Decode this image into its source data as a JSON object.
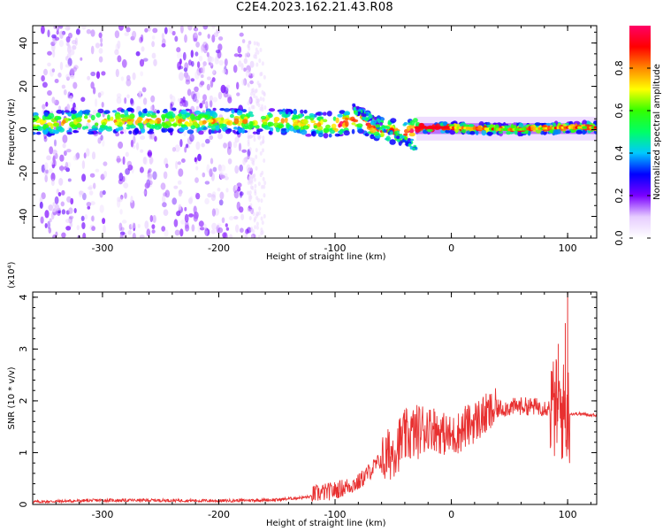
{
  "title": "C2E4.2023.162.21.43.R08",
  "chart_data": [
    {
      "type": "heatmap",
      "xlabel": "Height of straight line (km)",
      "ylabel": "Frequency (Hz)",
      "xlim": [
        -360,
        125
      ],
      "ylim": [
        -50,
        48
      ],
      "xticks": [
        -300,
        -200,
        -100,
        0,
        100
      ],
      "yticks": [
        -40,
        -20,
        0,
        20,
        40
      ],
      "colorbar": {
        "label": "Normalized spectral amplitude",
        "range": [
          0.0,
          1.0
        ],
        "ticks": [
          0.0,
          0.2,
          0.4,
          0.6,
          0.8
        ],
        "colormap": "rainbow",
        "stops": [
          "#ffffff",
          "#e6ccff",
          "#7a00ff",
          "#0000ff",
          "#00c8ff",
          "#00ff66",
          "#33ff00",
          "#ffff00",
          "#ff8800",
          "#ff0000",
          "#ff0066"
        ]
      },
      "band_center_hz": [
        {
          "x": -360,
          "f": 3
        },
        {
          "x": -300,
          "f": 4
        },
        {
          "x": -250,
          "f": 4
        },
        {
          "x": -200,
          "f": 4
        },
        {
          "x": -150,
          "f": 4
        },
        {
          "x": -100,
          "f": 2
        },
        {
          "x": -80,
          "f": 5
        },
        {
          "x": -60,
          "f": 0
        },
        {
          "x": -40,
          "f": -2
        },
        {
          "x": -30,
          "f": 1
        },
        {
          "x": 0,
          "f": 1
        },
        {
          "x": 50,
          "f": 0
        },
        {
          "x": 100,
          "f": 1
        },
        {
          "x": 125,
          "f": 1
        }
      ],
      "grid": false
    },
    {
      "type": "line",
      "xlabel": "Height of straight line (km)",
      "ylabel": "SNR (10 * v/v)",
      "y_multiplier": "(x10⁴)",
      "xlim": [
        -360,
        125
      ],
      "ylim": [
        0,
        4.1
      ],
      "xticks": [
        -300,
        -200,
        -100,
        0,
        100
      ],
      "yticks": [
        0,
        1,
        2,
        3,
        4
      ],
      "series": [
        {
          "color": "#e83030",
          "x": [
            -360,
            -300,
            -250,
            -200,
            -150,
            -120,
            -100,
            -80,
            -60,
            -40,
            -20,
            0,
            20,
            40,
            60,
            80,
            90,
            95,
            100,
            105,
            110,
            125
          ],
          "y": [
            0.02,
            0.05,
            0.05,
            0.04,
            0.06,
            0.12,
            0.2,
            0.35,
            0.8,
            1.3,
            1.5,
            1.3,
            1.6,
            1.85,
            1.9,
            1.88,
            1.85,
            1.8,
            1.75,
            1.75,
            1.75,
            1.72
          ],
          "spikes": [
            {
              "x": -15,
              "y": 1.85
            },
            {
              "x": 12,
              "y": 1.9
            },
            {
              "x": 92,
              "y": 3.1
            },
            {
              "x": 98,
              "y": 3.5
            },
            {
              "x": 100,
              "y": 4.1
            }
          ]
        }
      ],
      "grid": false
    }
  ]
}
